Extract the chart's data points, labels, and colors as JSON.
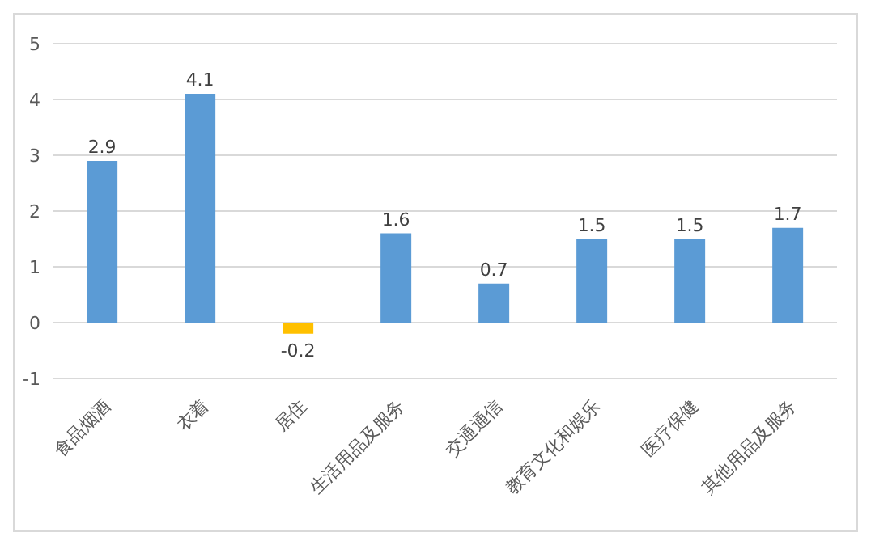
{
  "chart_data": {
    "type": "bar",
    "categories": [
      "食品烟酒",
      "衣着",
      "居住",
      "生活用品及服务",
      "交通通信",
      "教育文化和娱乐",
      "医疗保健",
      "其他用品及服务"
    ],
    "values": [
      2.9,
      4.1,
      -0.2,
      1.6,
      0.7,
      1.5,
      1.5,
      1.7
    ],
    "colors": [
      "#5b9bd5",
      "#5b9bd5",
      "#ffc000",
      "#5b9bd5",
      "#5b9bd5",
      "#5b9bd5",
      "#5b9bd5",
      "#5b9bd5"
    ],
    "ylim": [
      -1,
      5
    ],
    "yticks": [
      -1,
      0,
      1,
      2,
      3,
      4,
      5
    ],
    "grid": "y",
    "data_labels": true
  }
}
